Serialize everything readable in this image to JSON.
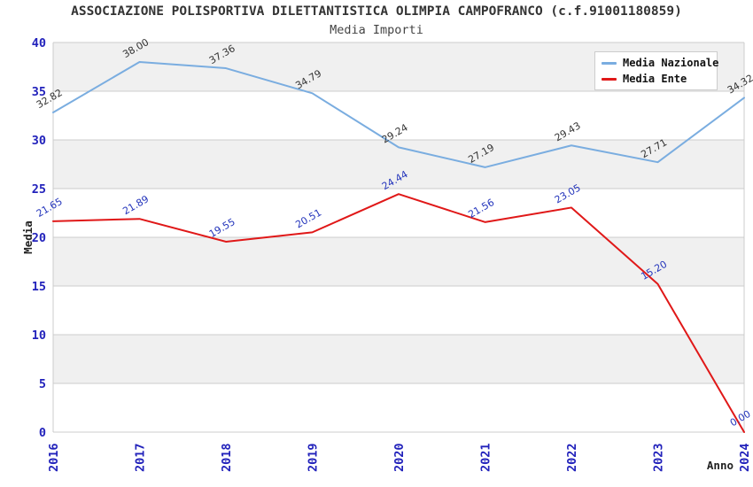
{
  "title": "ASSOCIAZIONE POLISPORTIVA DILETTANTISTICA OLIMPIA CAMPOFRANCO (c.f.91001180859)",
  "subtitle": "Media Importi",
  "axes": {
    "xlabel": "Anno",
    "ylabel": "Media"
  },
  "legend": {
    "items": [
      {
        "label": "Media Nazionale"
      },
      {
        "label": "Media Ente"
      }
    ]
  },
  "colors": {
    "band": "#f0f0f0",
    "grid": "#cccccc",
    "plot_border": "#cccccc",
    "tick_label": "#2222bb",
    "axis_title": "#222222",
    "title_text": "#333333",
    "nazionale_line": "#7aade0",
    "ente_line": "#e01818",
    "nazionale_value_label": "#333333",
    "ente_value_label": "#2233bb"
  },
  "chart_data": {
    "type": "line",
    "x": [
      "2016",
      "2017",
      "2018",
      "2019",
      "2020",
      "2021",
      "2022",
      "2023",
      "2024"
    ],
    "xlabel": "Anno",
    "ylabel": "Media",
    "ylim": [
      0,
      40
    ],
    "ytick_step": 5,
    "grid": true,
    "banded_background": true,
    "legend_position": "top-right",
    "value_label_decimals": 2,
    "value_label_rotation": -30,
    "series": [
      {
        "name": "Media Nazionale",
        "color": "#7aade0",
        "label_color": "#333333",
        "values": [
          32.82,
          38.0,
          37.36,
          34.79,
          29.24,
          27.19,
          29.43,
          27.71,
          34.32
        ]
      },
      {
        "name": "Media Ente",
        "color": "#e01818",
        "label_color": "#2233bb",
        "values": [
          21.65,
          21.89,
          19.55,
          20.51,
          24.44,
          21.56,
          23.05,
          15.2,
          0.0
        ]
      }
    ]
  }
}
